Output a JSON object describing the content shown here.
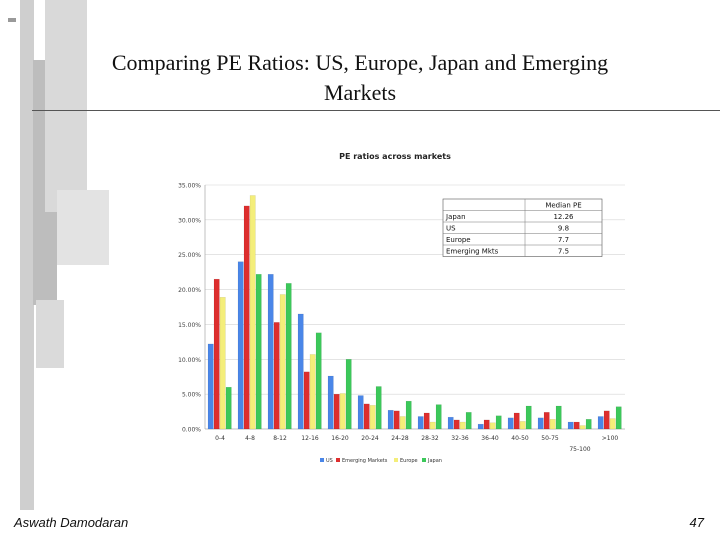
{
  "slide": {
    "title": "Comparing PE Ratios: US, Europe, Japan and Emerging Markets",
    "author": "Aswath Damodaran",
    "page_number": "47"
  },
  "colors": {
    "US": "#4a86e8",
    "Emerging Markets": "#dd2e2e",
    "Europe": "#f4ee7a",
    "Japan": "#3cc85a",
    "deco_gray": "#c8c8c8"
  },
  "chart_data": {
    "type": "bar",
    "title": "PE ratios across markets",
    "categories": [
      "0-4",
      "4-8",
      "8-12",
      "12-16",
      "16-20",
      "20-24",
      "24-28",
      "28-32",
      "32-36",
      "36-40",
      "40-50",
      "50-75",
      "75-100",
      ">100"
    ],
    "series": [
      {
        "name": "US",
        "values": [
          12.2,
          24.0,
          22.2,
          16.5,
          7.6,
          4.8,
          2.7,
          1.8,
          1.7,
          0.7,
          1.6,
          1.6,
          1.0,
          1.8
        ]
      },
      {
        "name": "Emerging Markets",
        "values": [
          21.5,
          32.0,
          15.3,
          8.2,
          5.0,
          3.6,
          2.6,
          2.3,
          1.3,
          1.3,
          2.3,
          2.4,
          1.0,
          2.6
        ]
      },
      {
        "name": "Europe",
        "values": [
          18.9,
          33.5,
          19.3,
          10.7,
          5.1,
          3.4,
          1.8,
          1.0,
          1.0,
          0.9,
          1.1,
          1.4,
          0.5,
          1.5
        ]
      },
      {
        "name": "Japan",
        "values": [
          6.0,
          22.2,
          20.9,
          13.8,
          10.0,
          6.1,
          4.0,
          3.5,
          2.4,
          1.9,
          3.3,
          3.3,
          1.4,
          3.2
        ]
      }
    ],
    "yticks": [
      "0.00%",
      "5.00%",
      "10.00%",
      "15.00%",
      "20.00%",
      "25.00%",
      "30.00%",
      "35.00%"
    ],
    "ylim": [
      0,
      35
    ],
    "grid": true,
    "legend_position": "bottom",
    "inset_table": {
      "header": "Median PE",
      "rows": [
        {
          "market": "Japan",
          "median_pe": "12.26"
        },
        {
          "market": "US",
          "median_pe": "9.8"
        },
        {
          "market": "Europe",
          "median_pe": "7.7"
        },
        {
          "market": "Emerging Mkts",
          "median_pe": "7.5"
        }
      ]
    }
  }
}
